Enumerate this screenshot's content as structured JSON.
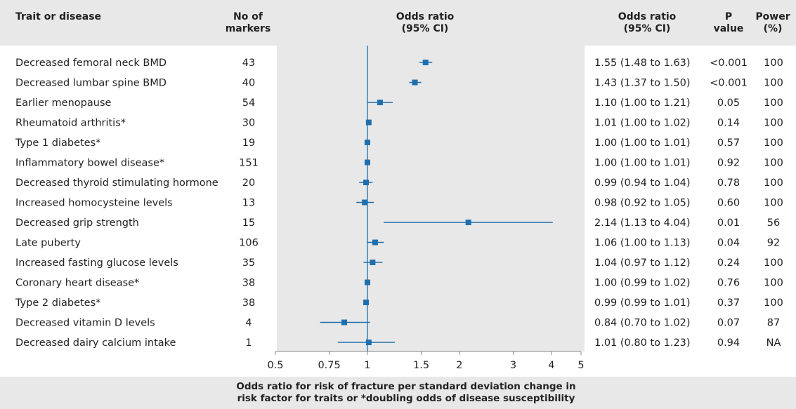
{
  "headers": {
    "trait": "Trait or disease",
    "markers_line1": "No of",
    "markers_line2": "markers",
    "or_line1": "Odds ratio",
    "or_line2": "(95% CI)",
    "orci_line1": "Odds ratio",
    "orci_line2": "(95% CI)",
    "p_line1": "P",
    "p_line2": "value",
    "power_line1": "Power",
    "power_line2": "(%)"
  },
  "x_axis_title_line1": "Odds ratio for risk of fracture per standard deviation change in",
  "x_axis_title_line2": "risk factor for traits or *doubling odds of disease susceptibility",
  "colors": {
    "accent": "#1f6fae",
    "panel": "#e8e8e8",
    "text": "#222222"
  },
  "chart_data": {
    "type": "forest",
    "xscale": "log",
    "xlim": [
      0.5,
      5
    ],
    "xticks": [
      0.5,
      0.75,
      1,
      1.5,
      2,
      3,
      4,
      5
    ],
    "xtick_labels": [
      "0.5",
      "0.75",
      "1",
      "1.5",
      "2",
      "3",
      "4",
      "5"
    ],
    "reference_line": 1,
    "rows": [
      {
        "trait": "Decreased femoral neck BMD",
        "markers": "43",
        "or": 1.55,
        "lo": 1.48,
        "hi": 1.63,
        "ci_text": "1.55 (1.48 to 1.63)",
        "p": "<0.001",
        "power": "100"
      },
      {
        "trait": "Decreased lumbar spine BMD",
        "markers": "40",
        "or": 1.43,
        "lo": 1.37,
        "hi": 1.5,
        "ci_text": "1.43 (1.37 to 1.50)",
        "p": "<0.001",
        "power": "100"
      },
      {
        "trait": "Earlier menopause",
        "markers": "54",
        "or": 1.1,
        "lo": 1.0,
        "hi": 1.21,
        "ci_text": "1.10 (1.00 to 1.21)",
        "p": "0.05",
        "power": "100"
      },
      {
        "trait": "Rheumatoid arthritis*",
        "markers": "30",
        "or": 1.01,
        "lo": 1.0,
        "hi": 1.02,
        "ci_text": "1.01 (1.00 to 1.02)",
        "p": "0.14",
        "power": "100"
      },
      {
        "trait": "Type 1 diabetes*",
        "markers": "19",
        "or": 1.0,
        "lo": 1.0,
        "hi": 1.01,
        "ci_text": "1.00 (1.00 to 1.01)",
        "p": "0.57",
        "power": "100"
      },
      {
        "trait": "Inflammatory bowel disease*",
        "markers": "151",
        "or": 1.0,
        "lo": 1.0,
        "hi": 1.01,
        "ci_text": "1.00 (1.00 to 1.01)",
        "p": "0.92",
        "power": "100"
      },
      {
        "trait": "Decreased thyroid stimulating hormone",
        "markers": "20",
        "or": 0.99,
        "lo": 0.94,
        "hi": 1.04,
        "ci_text": "0.99 (0.94 to 1.04)",
        "p": "0.78",
        "power": "100"
      },
      {
        "trait": "Increased homocysteine levels",
        "markers": "13",
        "or": 0.98,
        "lo": 0.92,
        "hi": 1.05,
        "ci_text": "0.98 (0.92 to 1.05)",
        "p": "0.60",
        "power": "100"
      },
      {
        "trait": "Decreased grip strength",
        "markers": "15",
        "or": 2.14,
        "lo": 1.13,
        "hi": 4.04,
        "ci_text": "2.14 (1.13 to 4.04)",
        "p": "0.01",
        "power": "56"
      },
      {
        "trait": "Late puberty",
        "markers": "106",
        "or": 1.06,
        "lo": 1.0,
        "hi": 1.13,
        "ci_text": "1.06 (1.00 to 1.13)",
        "p": "0.04",
        "power": "92"
      },
      {
        "trait": "Increased fasting glucose levels",
        "markers": "35",
        "or": 1.04,
        "lo": 0.97,
        "hi": 1.12,
        "ci_text": "1.04 (0.97 to 1.12)",
        "p": "0.24",
        "power": "100"
      },
      {
        "trait": "Coronary heart disease*",
        "markers": "38",
        "or": 1.0,
        "lo": 0.99,
        "hi": 1.02,
        "ci_text": "1.00 (0.99 to 1.02)",
        "p": "0.76",
        "power": "100"
      },
      {
        "trait": "Type 2 diabetes*",
        "markers": "38",
        "or": 0.99,
        "lo": 0.99,
        "hi": 1.01,
        "ci_text": "0.99 (0.99 to 1.01)",
        "p": "0.37",
        "power": "100"
      },
      {
        "trait": "Decreased vitamin D levels",
        "markers": "4",
        "or": 0.84,
        "lo": 0.7,
        "hi": 1.02,
        "ci_text": "0.84 (0.70 to 1.02)",
        "p": "0.07",
        "power": "87"
      },
      {
        "trait": "Decreased dairy calcium intake",
        "markers": "1",
        "or": 1.01,
        "lo": 0.8,
        "hi": 1.23,
        "ci_text": "1.01 (0.80 to 1.23)",
        "p": "0.94",
        "power": "NA"
      }
    ]
  }
}
